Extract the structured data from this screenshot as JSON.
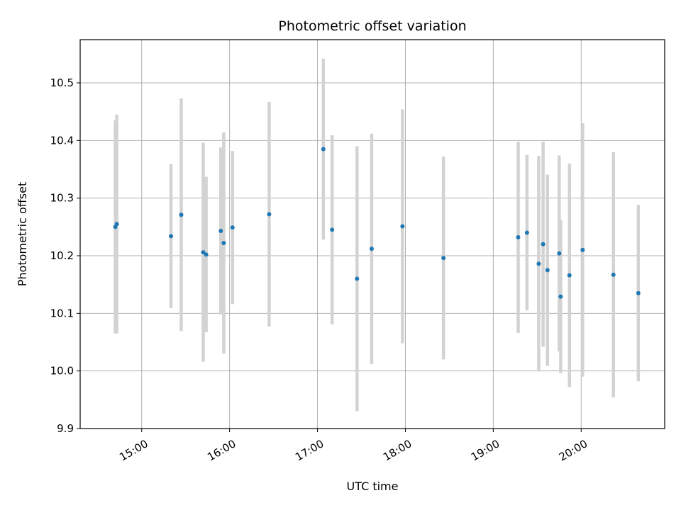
{
  "chart_data": {
    "type": "scatter",
    "title": "Photometric offset variation",
    "xlabel": "UTC time",
    "ylabel": "Photometric offset",
    "x_format": "HH:MM",
    "xlim": [
      "14:18",
      "20:57"
    ],
    "ylim": [
      9.9,
      10.575
    ],
    "x_ticks": [
      "15:00",
      "16:00",
      "17:00",
      "18:00",
      "19:00",
      "20:00"
    ],
    "y_ticks": [
      "9.9",
      "10.0",
      "10.1",
      "10.2",
      "10.3",
      "10.4",
      "10.5"
    ],
    "grid": true,
    "point_color": "#1f77b4",
    "errorbar_color": "#d3d3d3",
    "points": [
      {
        "x": "14:42",
        "y": 10.25,
        "err": 0.185
      },
      {
        "x": "14:43",
        "y": 10.255,
        "err": 0.19
      },
      {
        "x": "15:20",
        "y": 10.234,
        "err": 0.125
      },
      {
        "x": "15:27",
        "y": 10.271,
        "err": 0.202
      },
      {
        "x": "15:42",
        "y": 10.206,
        "err": 0.19
      },
      {
        "x": "15:44",
        "y": 10.202,
        "err": 0.135
      },
      {
        "x": "15:54",
        "y": 10.243,
        "err": 0.145
      },
      {
        "x": "15:56",
        "y": 10.222,
        "err": 0.192
      },
      {
        "x": "16:02",
        "y": 10.249,
        "err": 0.133
      },
      {
        "x": "16:27",
        "y": 10.272,
        "err": 0.195
      },
      {
        "x": "17:04",
        "y": 10.385,
        "err": 0.157
      },
      {
        "x": "17:10",
        "y": 10.245,
        "err": 0.164
      },
      {
        "x": "17:27",
        "y": 10.16,
        "err": 0.23
      },
      {
        "x": "17:37",
        "y": 10.212,
        "err": 0.2
      },
      {
        "x": "17:58",
        "y": 10.251,
        "err": 0.203
      },
      {
        "x": "18:26",
        "y": 10.196,
        "err": 0.176
      },
      {
        "x": "19:17",
        "y": 10.232,
        "err": 0.166
      },
      {
        "x": "19:23",
        "y": 10.24,
        "err": 0.135
      },
      {
        "x": "19:31",
        "y": 10.186,
        "err": 0.187
      },
      {
        "x": "19:34",
        "y": 10.22,
        "err": 0.178
      },
      {
        "x": "19:37",
        "y": 10.175,
        "err": 0.166
      },
      {
        "x": "19:45",
        "y": 10.204,
        "err": 0.17
      },
      {
        "x": "19:46",
        "y": 10.129,
        "err": 0.133
      },
      {
        "x": "19:52",
        "y": 10.166,
        "err": 0.194
      },
      {
        "x": "20:01",
        "y": 10.21,
        "err": 0.22
      },
      {
        "x": "20:22",
        "y": 10.167,
        "err": 0.213
      },
      {
        "x": "20:39",
        "y": 10.135,
        "err": 0.153
      }
    ]
  }
}
